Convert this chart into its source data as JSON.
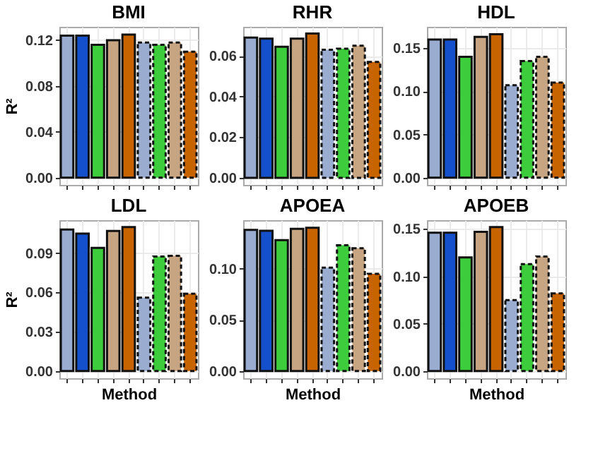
{
  "chart_data": [
    {
      "type": "bar",
      "title": "BMI",
      "ylabel": "R²",
      "categories": [
        null,
        null,
        null,
        null,
        null,
        null,
        null,
        null,
        null
      ],
      "series": [
        {
          "values": [
            0.124,
            0.124,
            0.116,
            0.12,
            0.125,
            null,
            null,
            null,
            null
          ],
          "colors": [
            "#9aadd0",
            "#1450cc",
            "#3ccc3c",
            "#c8a582",
            "#c86400",
            null,
            null,
            null,
            null
          ],
          "line_style": "solid"
        },
        {
          "values": [
            null,
            null,
            null,
            null,
            null,
            0.118,
            0.116,
            0.118,
            0.11
          ],
          "colors": [
            null,
            null,
            null,
            null,
            null,
            "#9aadd0",
            "#3ccc3c",
            "#c8a582",
            "#c86400"
          ],
          "line_style": "dashed"
        }
      ],
      "ylim": [
        -0.0063,
        0.1317
      ],
      "yticks": [
        {
          "value": 0,
          "label": "0.00"
        },
        0.04,
        0.08,
        0.12
      ],
      "grid": true,
      "tick_labels": "y"
    },
    {
      "type": "bar",
      "title": "RHR",
      "categories": [
        null,
        null,
        null,
        null,
        null,
        null,
        null,
        null,
        null
      ],
      "series": [
        {
          "values": [
            0.069,
            0.0685,
            0.0645,
            0.0685,
            0.071,
            null,
            null,
            null,
            null
          ],
          "colors": [
            "#9aadd0",
            "#1450cc",
            "#3ccc3c",
            "#c8a582",
            "#c86400",
            null,
            null,
            null,
            null
          ],
          "line_style": "solid"
        },
        {
          "values": [
            null,
            null,
            null,
            null,
            null,
            0.063,
            0.0635,
            0.065,
            0.057
          ],
          "colors": [
            null,
            null,
            null,
            null,
            null,
            "#9aadd0",
            "#3ccc3c",
            "#c8a582",
            "#c86400"
          ],
          "line_style": "dashed"
        }
      ],
      "ylim": [
        -0.0035,
        0.0743
      ],
      "yticks": [
        {
          "value": 0,
          "label": "0.00"
        },
        {
          "value": 0.02,
          "label": "0.02"
        },
        {
          "value": 0.04,
          "label": "0.04"
        },
        {
          "value": 0.06,
          "label": "0.06"
        }
      ],
      "grid": true,
      "tick_labels": "y"
    },
    {
      "type": "bar",
      "title": "HDL",
      "categories": [
        null,
        null,
        null,
        null,
        null,
        null,
        null,
        null,
        null
      ],
      "series": [
        {
          "values": [
            0.16,
            0.16,
            0.14,
            0.163,
            0.166,
            null,
            null,
            null,
            null
          ],
          "colors": [
            "#9aadd0",
            "#1450cc",
            "#3ccc3c",
            "#c8a582",
            "#c86400",
            null,
            null,
            null,
            null
          ],
          "line_style": "solid"
        },
        {
          "values": [
            null,
            null,
            null,
            null,
            null,
            0.107,
            0.135,
            0.14,
            0.11
          ],
          "colors": [
            null,
            null,
            null,
            null,
            null,
            "#9aadd0",
            "#3ccc3c",
            "#c8a582",
            "#c86400"
          ],
          "line_style": "dashed"
        }
      ],
      "ylim": [
        -0.0083,
        0.1746
      ],
      "yticks": [
        {
          "value": 0,
          "label": "0.00"
        },
        0.05,
        {
          "value": 0.1,
          "label": "0.10"
        },
        0.15
      ],
      "grid": true,
      "tick_labels": "y"
    },
    {
      "type": "bar",
      "title": "LDL",
      "ylabel": "R²",
      "xlabel": "Method",
      "categories": [
        null,
        null,
        null,
        null,
        null,
        null,
        null,
        null,
        null
      ],
      "series": [
        {
          "values": [
            0.108,
            0.105,
            0.094,
            0.107,
            0.11,
            null,
            null,
            null,
            null
          ],
          "colors": [
            "#9aadd0",
            "#1450cc",
            "#3ccc3c",
            "#c8a582",
            "#c86400",
            null,
            null,
            null,
            null
          ],
          "line_style": "solid"
        },
        {
          "values": [
            null,
            null,
            null,
            null,
            null,
            0.056,
            0.0875,
            0.088,
            0.059
          ],
          "colors": [
            null,
            null,
            null,
            null,
            null,
            "#9aadd0",
            "#3ccc3c",
            "#c8a582",
            "#c86400"
          ],
          "line_style": "dashed"
        }
      ],
      "ylim": [
        -0.0055,
        0.1152
      ],
      "yticks": [
        {
          "value": 0,
          "label": "0.00"
        },
        0.03,
        {
          "value": 0.06,
          "label": "0.06"
        },
        0.09
      ],
      "grid": true,
      "tick_labels": "y"
    },
    {
      "type": "bar",
      "title": "APOEA",
      "xlabel": "Method",
      "categories": [
        null,
        null,
        null,
        null,
        null,
        null,
        null,
        null,
        null
      ],
      "series": [
        {
          "values": [
            0.138,
            0.137,
            0.128,
            0.139,
            0.14,
            null,
            null,
            null,
            null
          ],
          "colors": [
            "#9aadd0",
            "#1450cc",
            "#3ccc3c",
            "#c8a582",
            "#c86400",
            null,
            null,
            null,
            null
          ],
          "line_style": "solid"
        },
        {
          "values": [
            null,
            null,
            null,
            null,
            null,
            0.101,
            0.123,
            0.12,
            0.095
          ],
          "colors": [
            null,
            null,
            null,
            null,
            null,
            "#9aadd0",
            "#3ccc3c",
            "#c8a582",
            "#c86400"
          ],
          "line_style": "dashed"
        }
      ],
      "ylim": [
        -0.007,
        0.1474
      ],
      "yticks": [
        {
          "value": 0,
          "label": "0.00"
        },
        0.05,
        {
          "value": 0.1,
          "label": "0.10"
        }
      ],
      "grid": true,
      "tick_labels": "y"
    },
    {
      "type": "bar",
      "title": "APOEB",
      "xlabel": "Method",
      "categories": [
        null,
        null,
        null,
        null,
        null,
        null,
        null,
        null,
        null
      ],
      "series": [
        {
          "values": [
            0.146,
            0.146,
            0.12,
            0.147,
            0.152,
            null,
            null,
            null,
            null
          ],
          "colors": [
            "#9aadd0",
            "#1450cc",
            "#3ccc3c",
            "#c8a582",
            "#c86400",
            null,
            null,
            null,
            null
          ],
          "line_style": "solid"
        },
        {
          "values": [
            null,
            null,
            null,
            null,
            null,
            0.075,
            0.113,
            0.121,
            0.082
          ],
          "colors": [
            null,
            null,
            null,
            null,
            null,
            "#9aadd0",
            "#3ccc3c",
            "#c8a582",
            "#c86400"
          ],
          "line_style": "dashed"
        }
      ],
      "ylim": [
        -0.0076,
        0.1593
      ],
      "yticks": [
        {
          "value": 0,
          "label": "0.00"
        },
        0.05,
        {
          "value": 0.1,
          "label": "0.10"
        },
        0.15
      ],
      "grid": true,
      "tick_labels": "y"
    }
  ]
}
